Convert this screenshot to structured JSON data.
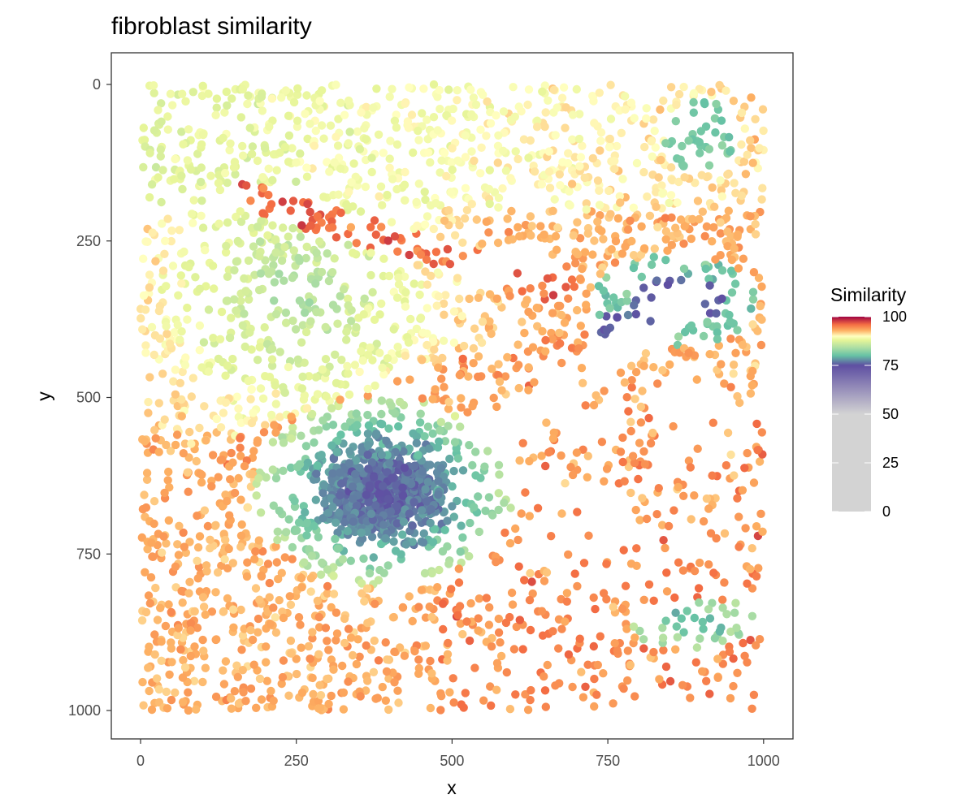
{
  "chart_data": {
    "type": "scatter",
    "title": "fibroblast similarity",
    "xlabel": "x",
    "ylabel": "y",
    "xlim": [
      -50,
      1050
    ],
    "ylim": [
      1050,
      -50
    ],
    "y_reversed": true,
    "x_ticks": [
      "0",
      "250",
      "500",
      "750",
      "1000"
    ],
    "y_ticks": [
      "0",
      "250",
      "500",
      "750",
      "1000"
    ],
    "grid": false,
    "legend": {
      "title": "Similarity",
      "placement": "right",
      "labels": [
        "100",
        "75",
        "50",
        "25",
        "0"
      ],
      "range": [
        0,
        100
      ],
      "colors": [
        {
          "value": 0,
          "color": "#d3d3d3"
        },
        {
          "value": 50,
          "color": "#d3d3d3"
        },
        {
          "value": 75,
          "color": "#5e4fa2"
        },
        {
          "value": 80,
          "color": "#66c2a5"
        },
        {
          "value": 84,
          "color": "#abdda4"
        },
        {
          "value": 88,
          "color": "#e6f598"
        },
        {
          "value": 90,
          "color": "#ffffbf"
        },
        {
          "value": 93,
          "color": "#fdae61"
        },
        {
          "value": 96,
          "color": "#f46d43"
        },
        {
          "value": 100,
          "color": "#9e0142"
        }
      ]
    },
    "point_color_scale": "Spectral (100 = red, 75 = purple, below 75 fades to grey)",
    "point_density": "about 4000 cells covering x 0–1000, y 0–1000",
    "regions": [
      {
        "name": "dense high-similarity cluster",
        "center": [
          390,
          650
        ],
        "radius": 120,
        "similarity": 75
      },
      {
        "name": "upper-right elongated cluster",
        "center": [
          860,
          350
        ],
        "radius": 60,
        "similarity": 76
      },
      {
        "name": "lower-right small cluster",
        "center": [
          890,
          860
        ],
        "radius": 40,
        "similarity": 80
      },
      {
        "name": "upper-left green region",
        "center": [
          250,
          350
        ],
        "radius": 200,
        "similarity": 84
      },
      {
        "name": "lower half orange strands",
        "center": [
          650,
          800
        ],
        "radius": 250,
        "similarity": 94
      }
    ]
  }
}
